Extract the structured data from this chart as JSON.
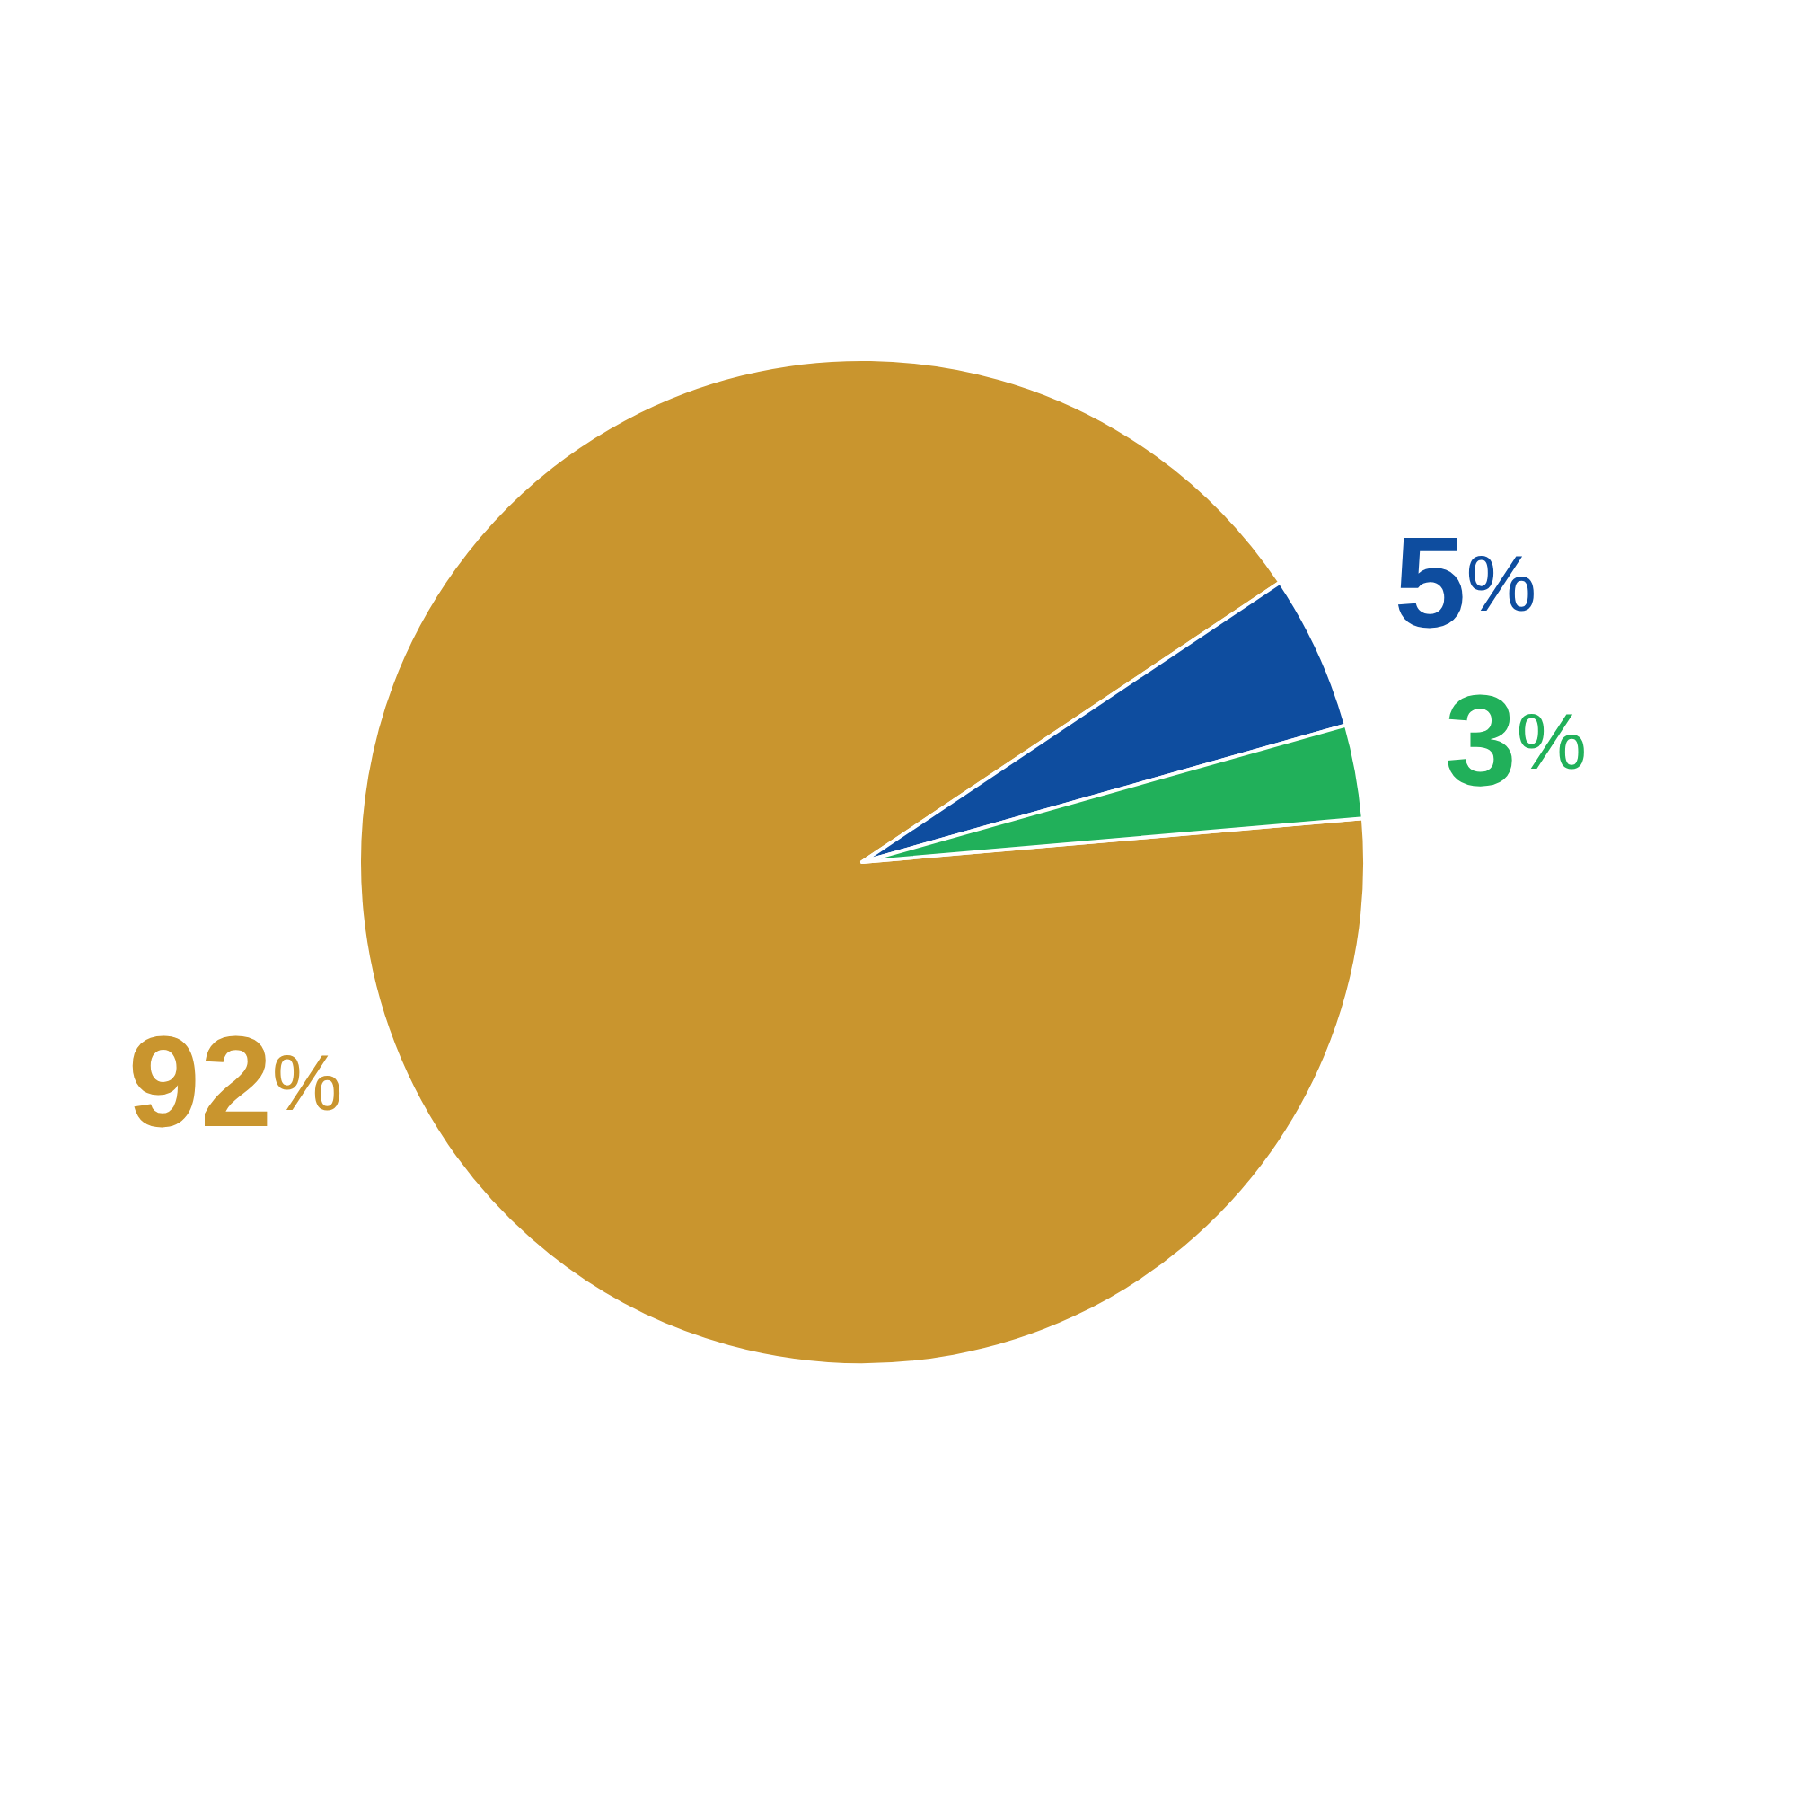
{
  "chart_data": {
    "type": "pie",
    "categories": [
      null,
      null,
      null
    ],
    "values": [
      92,
      5,
      3
    ],
    "colors": [
      "#c9952e",
      "#0e4d9f",
      "#21b05a"
    ],
    "value_labels": [
      "92%",
      "5%",
      "3%"
    ]
  }
}
